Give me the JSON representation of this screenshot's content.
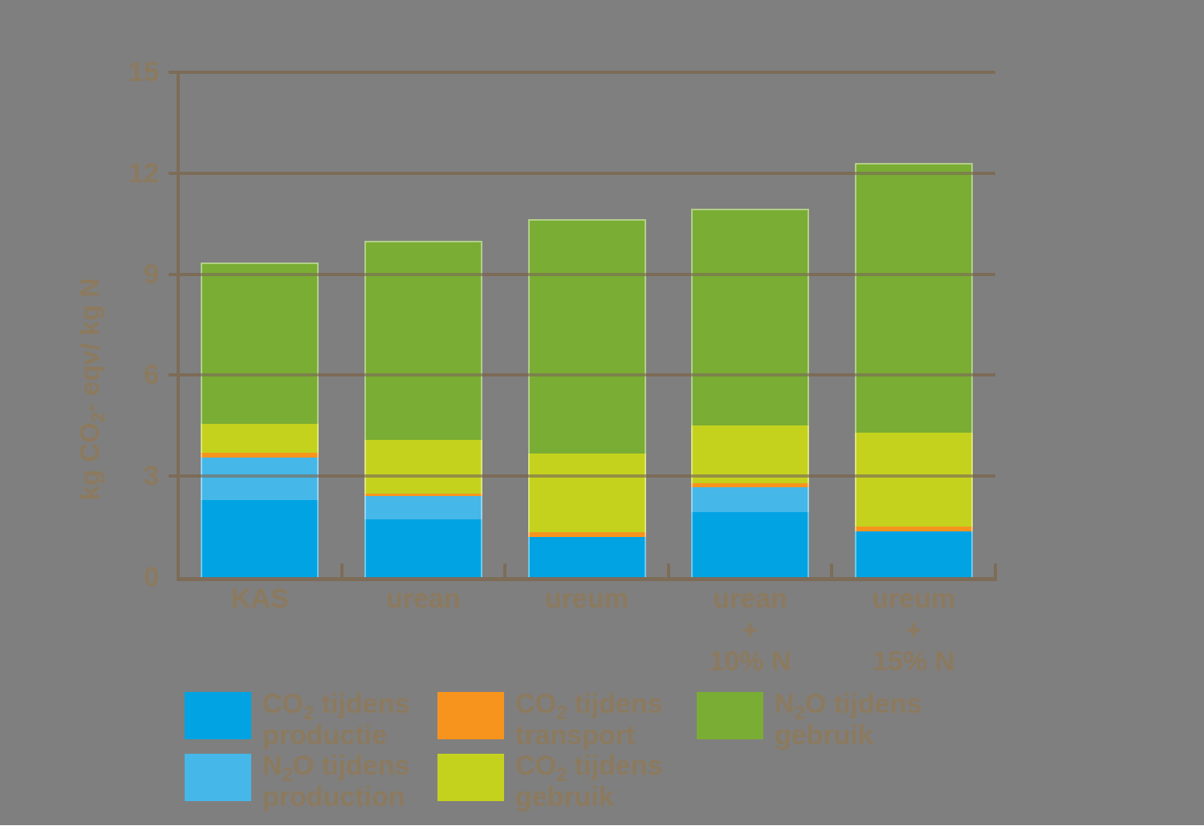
{
  "background_color": "#7f7f7f",
  "chart_data": {
    "type": "bar",
    "stacked": true,
    "ylabel": "kg CO2- eqv/ kg N",
    "ylabel_parts": {
      "pre": "kg CO",
      "sub": "2",
      "post": "- eqv/ kg N"
    },
    "ylim": [
      0,
      15
    ],
    "yticks": [
      0,
      3,
      6,
      9,
      12,
      15
    ],
    "categories": [
      "KAS",
      "urean",
      "ureum",
      "urean + 10% N",
      "ureum + 15% N"
    ],
    "category_lines": [
      [
        "KAS"
      ],
      [
        "urean"
      ],
      [
        "ureum"
      ],
      [
        "urean",
        "+",
        "10% N"
      ],
      [
        "ureum",
        "+",
        "15% N"
      ]
    ],
    "series": [
      {
        "name": "CO2 tijdens productie",
        "color": "#02A3E2",
        "values": [
          2.3,
          1.72,
          1.2,
          1.93,
          1.36
        ]
      },
      {
        "name": "N2O tijdens production",
        "color": "#45B7E8",
        "values": [
          1.25,
          0.68,
          0,
          0.75,
          0
        ]
      },
      {
        "name": "CO2 tijdens transport",
        "color": "#F7941E",
        "values": [
          0.15,
          0.08,
          0.14,
          0.12,
          0.15
        ]
      },
      {
        "name": "CO2 tijdens gebruik",
        "color": "#C4D21E",
        "values": [
          0.85,
          1.6,
          2.34,
          1.7,
          2.79
        ]
      },
      {
        "name": "N2O tijdens gebruik",
        "color": "#7AAD33",
        "values": [
          4.8,
          5.92,
          6.96,
          6.45,
          8.0
        ]
      }
    ],
    "totals": [
      9.35,
      10.0,
      10.64,
      10.95,
      12.31
    ],
    "grid": true,
    "legend_position": "bottom"
  },
  "legend": {
    "items": [
      {
        "pre": "CO",
        "sub": "2",
        "rest": " tijdens",
        "line2": "productie",
        "color": "#02A3E2",
        "col": 0,
        "row": 0
      },
      {
        "pre": "N",
        "sub": "2",
        "rest": "O tijdens",
        "line2": "production",
        "color": "#45B7E8",
        "col": 0,
        "row": 1
      },
      {
        "pre": "CO",
        "sub": "2",
        "rest": " tijdens",
        "line2": "transport",
        "color": "#F7941E",
        "col": 1,
        "row": 0
      },
      {
        "pre": "CO",
        "sub": "2",
        "rest": " tijdens",
        "line2": "gebruik",
        "color": "#C4D21E",
        "col": 1,
        "row": 1
      },
      {
        "pre": "N",
        "sub": "2",
        "rest": "O tijdens",
        "line2": "gebruik",
        "color": "#7AAD33",
        "col": 2,
        "row": 0
      }
    ]
  },
  "axis": {
    "line_color": "#7D6C57",
    "grid_overlay": "rgba(125,108,87,0.65)",
    "text_color": "#8C7A5F"
  }
}
